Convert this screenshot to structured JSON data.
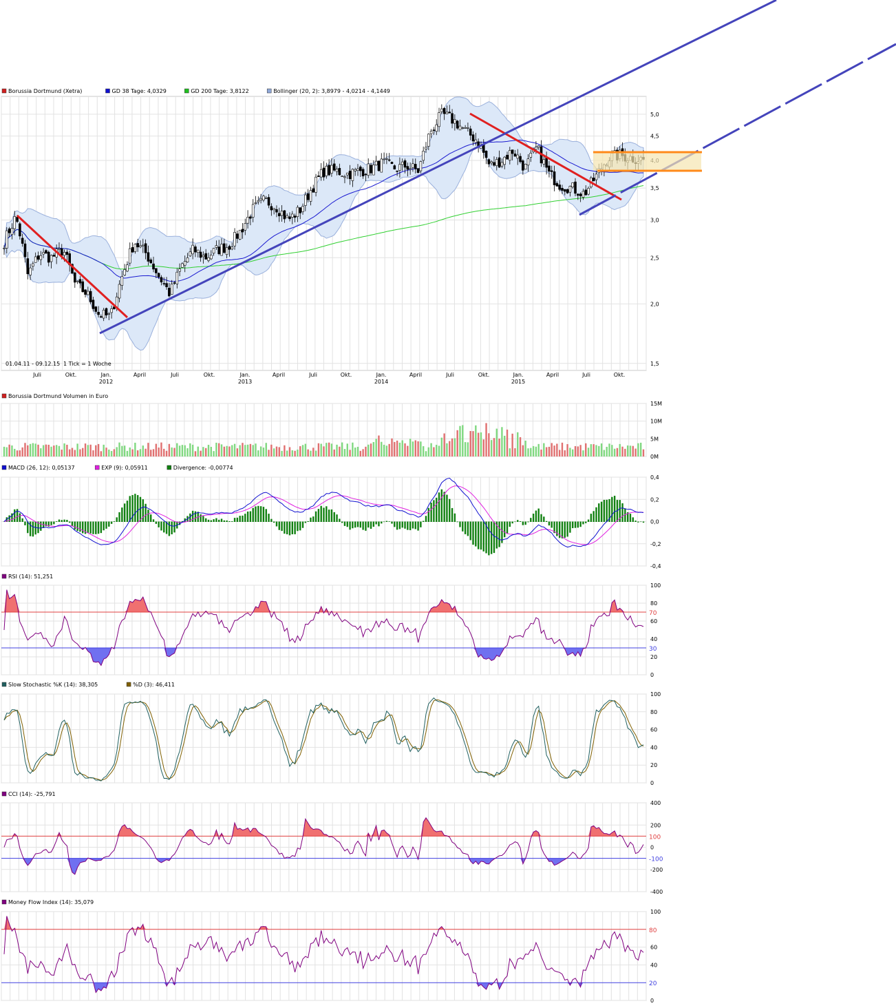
{
  "chart_data": [
    {
      "type": "candlestick",
      "name": "price",
      "legend": [
        {
          "label": "Borussia Dortmund (Xetra)",
          "color": "#d02020"
        },
        {
          "label": "GD 38 Tage: 4,0329",
          "color": "#1010d0"
        },
        {
          "label": "GD 200 Tage: 3,8122",
          "color": "#20c020"
        },
        {
          "label": "Bollinger (20, 2): 3,8979 - 4,0214 - 4,1449",
          "color": "#90a8d8"
        }
      ],
      "y_ticks": [
        "5,0",
        "4,5",
        "4,0",
        "3,5",
        "3,0",
        "2,5",
        "2,0",
        "1,5"
      ],
      "y_scale": "log",
      "ylim": [
        1.45,
        5.45
      ],
      "x_month_labels": [
        "Juli",
        "Okt.",
        "Jan.",
        "April",
        "Juli",
        "Okt.",
        "Jan.",
        "April",
        "Juli",
        "Okt.",
        "Jan.",
        "April",
        "Juli",
        "Okt.",
        "Jan.",
        "April",
        "Juli",
        "Okt."
      ],
      "x_year_labels": [
        "2012",
        "2013",
        "2014",
        "2015"
      ],
      "date_range_note": "01.04.11 - 09.12.15",
      "tick_note": "1 Tick = 1 Woche",
      "close_waypoints": [
        2.7,
        3.05,
        2.3,
        2.55,
        2.5,
        2.6,
        2.2,
        2.1,
        1.9,
        1.88,
        2.3,
        2.7,
        2.55,
        2.3,
        2.1,
        2.4,
        2.6,
        2.5,
        2.6,
        2.65,
        2.85,
        3.15,
        3.3,
        3.2,
        3.0,
        3.15,
        3.5,
        3.8,
        3.8,
        3.75,
        3.8,
        3.85,
        3.95,
        3.85,
        3.9,
        3.8,
        4.6,
        5.0,
        4.85,
        4.6,
        4.4,
        3.9,
        4.0,
        4.2,
        3.85,
        4.25,
        3.75,
        3.55,
        3.5,
        3.4,
        3.7,
        4.05,
        4.1,
        4.05,
        4.02
      ],
      "sma38_last": 4.0329,
      "sma200_last": 3.8122,
      "bollinger_last": [
        3.8979,
        4.0214,
        4.1449
      ]
    },
    {
      "type": "bar",
      "name": "volume",
      "legend": [
        {
          "label": "Borussia Dortmund Volumen in Euro",
          "color": "#d02020"
        }
      ],
      "y_ticks": [
        "15M",
        "10M",
        "5M",
        "0M"
      ],
      "ylim": [
        0,
        15
      ],
      "unit": "Mio. Euro"
    },
    {
      "type": "line",
      "name": "macd",
      "legend": [
        {
          "label": "MACD (26, 12): 0,05137",
          "color": "#1010d0"
        },
        {
          "label": "EXP (9): 0,05911",
          "color": "#e020e0"
        },
        {
          "label": "Divergence: -0,00774",
          "color": "#108010"
        }
      ],
      "y_ticks": [
        "0,4",
        "0,2",
        "0,0",
        "-0,2",
        "-0,4"
      ],
      "ylim": [
        -0.4,
        0.4
      ],
      "last": {
        "macd": 0.05137,
        "signal": 0.05911,
        "divergence": -0.00774
      }
    },
    {
      "type": "line",
      "name": "rsi",
      "legend": [
        {
          "label": "RSI (14): 51,251",
          "color": "#800080"
        }
      ],
      "y_ticks": [
        "100",
        "80",
        "60",
        "40",
        "20",
        "0"
      ],
      "levels": [
        {
          "label": "70",
          "value": 70,
          "color": "#e04040"
        },
        {
          "label": "30",
          "value": 30,
          "color": "#4040e0"
        }
      ],
      "ylim": [
        0,
        100
      ],
      "last": 51.251
    },
    {
      "type": "line",
      "name": "stochastic",
      "legend": [
        {
          "label": "Slow Stochastic %K (14): 38,305",
          "color": "#206060"
        },
        {
          "label": "%D (3): 46,411",
          "color": "#806000"
        }
      ],
      "y_ticks": [
        "100",
        "80",
        "60",
        "40",
        "20",
        "0"
      ],
      "ylim": [
        0,
        100
      ],
      "last": {
        "k": 38.305,
        "d": 46.411
      }
    },
    {
      "type": "line",
      "name": "cci",
      "legend": [
        {
          "label": "CCI (14): -25,791",
          "color": "#800080"
        }
      ],
      "y_ticks": [
        "400",
        "200",
        "0",
        "-200",
        "-400"
      ],
      "levels": [
        {
          "label": "100",
          "value": 100,
          "color": "#e04040"
        },
        {
          "label": "-100",
          "value": -100,
          "color": "#4040e0"
        }
      ],
      "ylim": [
        -400,
        400
      ],
      "last": -25.791
    },
    {
      "type": "line",
      "name": "mfi",
      "legend": [
        {
          "label": "Money Flow Index (14): 35,079",
          "color": "#800080"
        }
      ],
      "y_ticks": [
        "100",
        "60",
        "40",
        "0"
      ],
      "levels": [
        {
          "label": "80",
          "value": 80,
          "color": "#e04040"
        },
        {
          "label": "20",
          "value": 20,
          "color": "#4040e0"
        }
      ],
      "ylim": [
        0,
        100
      ],
      "last": 35.079
    }
  ]
}
